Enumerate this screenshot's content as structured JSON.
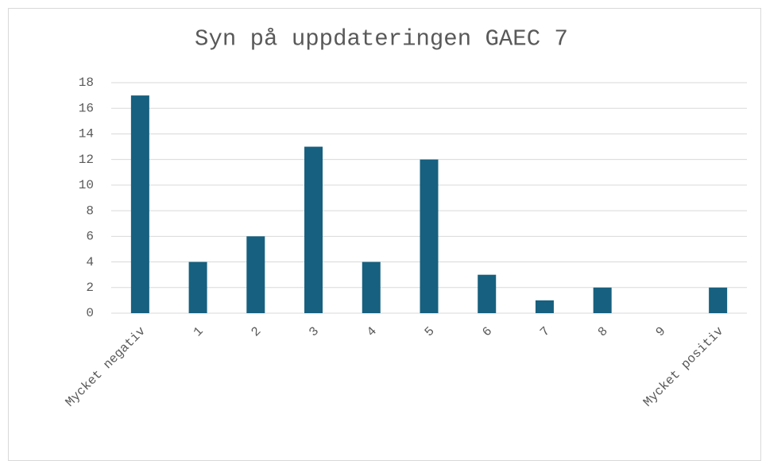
{
  "chart_data": {
    "type": "bar",
    "title": "Syn på uppdateringen GAEC 7",
    "categories": [
      "Mycket negativ",
      "1",
      "2",
      "3",
      "4",
      "5",
      "6",
      "7",
      "8",
      "9",
      "Mycket positiv"
    ],
    "values": [
      17,
      4,
      6,
      13,
      4,
      12,
      3,
      1,
      2,
      0,
      2
    ],
    "color": "#17607f",
    "ylim": [
      0,
      18
    ],
    "yticks": [
      0,
      2,
      4,
      6,
      8,
      10,
      12,
      14,
      16,
      18
    ],
    "grid": true
  }
}
